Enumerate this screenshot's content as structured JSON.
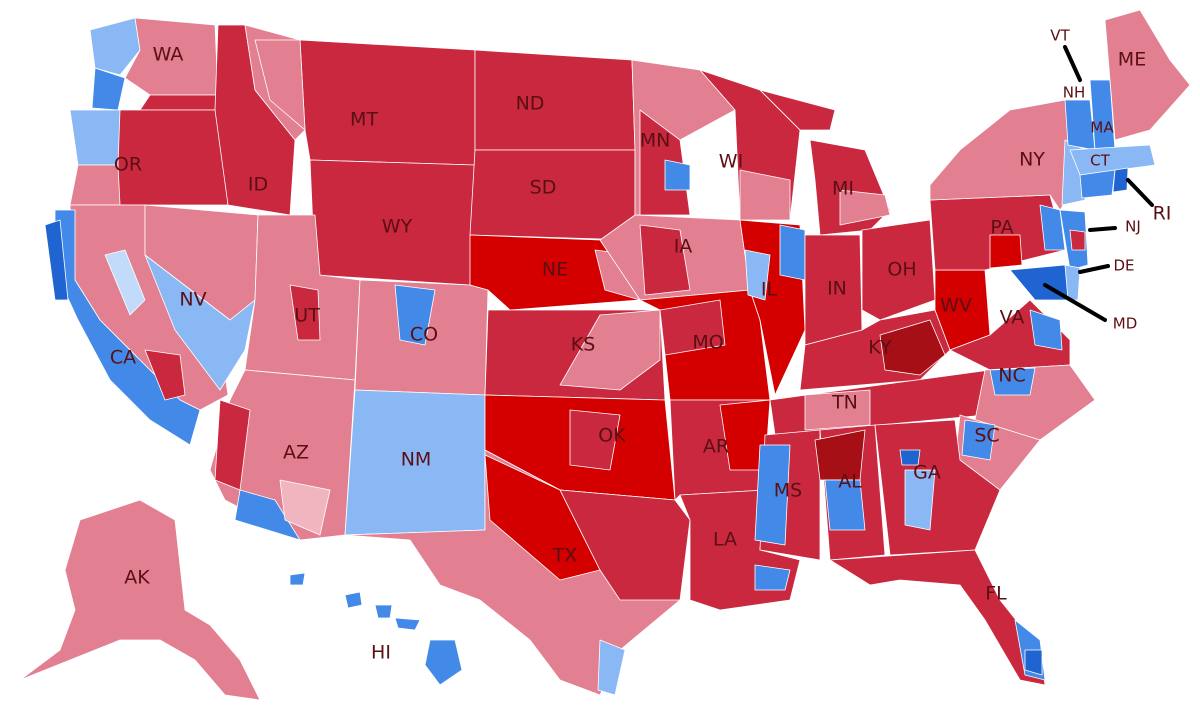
{
  "palette": {
    "safe_r": "#c9283e",
    "likely_r": "#d8435a",
    "lean_r": "#e27f90",
    "tilt_r": "#f0b5bf",
    "solid_r": "#d40000",
    "strong_r": "#a50f15",
    "lean_d": "#8ab8f5",
    "likely_d": "#4389e8",
    "safe_d": "#1f64d0",
    "tilt_d": "#c2dbfa"
  },
  "labels": {
    "wa": "WA",
    "or": "OR",
    "ca": "CA",
    "nv": "NV",
    "id": "ID",
    "mt": "MT",
    "wy": "WY",
    "ut": "UT",
    "az": "AZ",
    "co": "CO",
    "nm": "NM",
    "nd": "ND",
    "sd": "SD",
    "ne": "NE",
    "ks": "KS",
    "ok": "OK",
    "tx": "TX",
    "mn": "MN",
    "ia": "IA",
    "mo": "MO",
    "ar": "AR",
    "la": "LA",
    "wi": "WI",
    "il": "IL",
    "ms": "MS",
    "mi": "MI",
    "in": "IN",
    "ky": "KY",
    "tn": "TN",
    "al": "AL",
    "oh": "OH",
    "wv": "WV",
    "va": "VA",
    "nc": "NC",
    "sc": "SC",
    "ga": "GA",
    "fl": "FL",
    "pa": "PA",
    "ny": "NY",
    "vt": "VT",
    "nh": "NH",
    "ma": "MA",
    "ct": "CT",
    "ri": "RI",
    "nj": "NJ",
    "de": "DE",
    "md": "MD",
    "me": "ME",
    "ak": "AK",
    "hi": "HI"
  }
}
